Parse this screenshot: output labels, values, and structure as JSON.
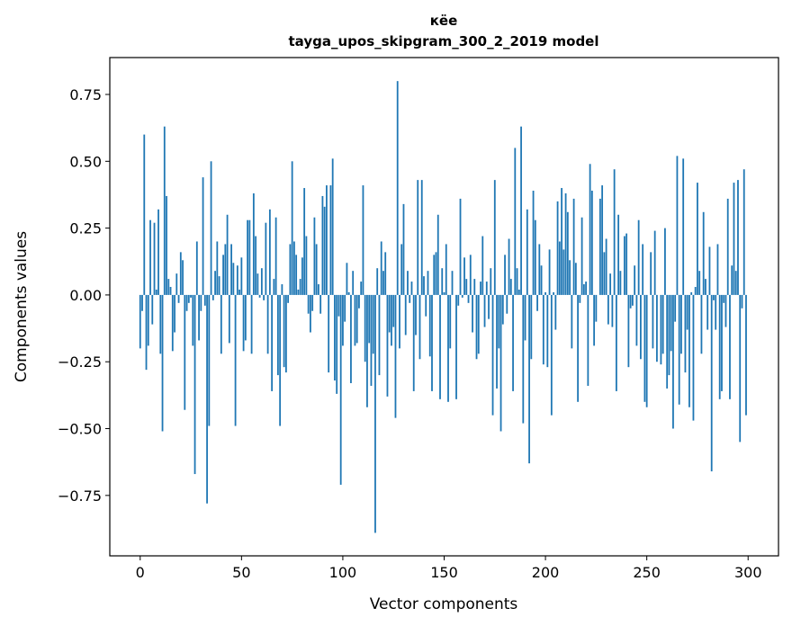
{
  "chart_data": {
    "type": "bar",
    "title_line1": "кёе",
    "title_line2": "tayga_upos_skipgram_300_2_2019 model",
    "xlabel": "Vector components",
    "ylabel": "Components values",
    "xlim": [
      -15,
      315
    ],
    "ylim": [
      -0.976,
      0.888
    ],
    "xticks": [
      "0",
      "50",
      "100",
      "150",
      "200",
      "250",
      "300"
    ],
    "xtick_values": [
      0,
      50,
      100,
      150,
      200,
      250,
      300
    ],
    "yticks": [
      "−0.75",
      "−0.50",
      "−0.25",
      "0.00",
      "0.25",
      "0.50",
      "0.75"
    ],
    "ytick_values": [
      -0.75,
      -0.5,
      -0.25,
      0,
      0.25,
      0.5,
      0.75
    ],
    "grid": false,
    "bar_color": "#1f77b4",
    "values": [
      -0.2,
      -0.06,
      0.6,
      -0.28,
      -0.19,
      0.28,
      -0.11,
      0.27,
      0.02,
      0.32,
      -0.22,
      -0.51,
      0.63,
      0.37,
      0.06,
      0.03,
      -0.21,
      -0.14,
      0.08,
      -0.03,
      0.16,
      0.13,
      -0.43,
      -0.06,
      -0.03,
      -0.01,
      -0.19,
      -0.67,
      0.2,
      -0.17,
      -0.06,
      0.44,
      -0.04,
      -0.78,
      -0.49,
      0.5,
      -0.02,
      0.09,
      0.2,
      0.07,
      -0.22,
      0.15,
      0.19,
      0.3,
      -0.18,
      0.19,
      0.12,
      -0.49,
      0.11,
      0.02,
      0.14,
      -0.21,
      -0.17,
      0.28,
      0.28,
      -0.22,
      0.38,
      0.22,
      0.08,
      -0.01,
      0.1,
      -0.02,
      0.27,
      -0.22,
      0.32,
      -0.36,
      0.06,
      0.29,
      -0.3,
      -0.49,
      0.04,
      -0.27,
      -0.29,
      -0.03,
      0.19,
      0.5,
      0.2,
      0.15,
      0.02,
      0.06,
      0.14,
      0.4,
      0.22,
      -0.07,
      -0.14,
      -0.06,
      0.29,
      0.19,
      0.04,
      -0.07,
      0.37,
      0.33,
      0.41,
      -0.29,
      0.41,
      0.51,
      -0.32,
      -0.37,
      -0.08,
      -0.71,
      -0.19,
      -0.1,
      0.12,
      0.01,
      -0.33,
      0.09,
      -0.19,
      -0.18,
      -0.05,
      0.05,
      0.41,
      -0.25,
      -0.42,
      -0.18,
      -0.34,
      -0.22,
      -0.89,
      0.1,
      -0.3,
      0.2,
      0.09,
      0.16,
      -0.38,
      -0.14,
      -0.19,
      -0.12,
      -0.46,
      0.8,
      -0.2,
      0.19,
      0.34,
      -0.15,
      0.09,
      -0.03,
      0.05,
      -0.36,
      -0.15,
      0.43,
      -0.24,
      0.43,
      0.07,
      -0.08,
      0.09,
      -0.23,
      -0.36,
      0.15,
      0.16,
      0.3,
      -0.39,
      0.1,
      0.01,
      0.19,
      -0.4,
      -0.2,
      0.09,
      0.0,
      -0.39,
      -0.04,
      0.36,
      -0.01,
      0.14,
      0.06,
      -0.03,
      0.15,
      -0.14,
      0.06,
      -0.24,
      -0.22,
      0.05,
      0.22,
      -0.12,
      0.05,
      -0.09,
      0.1,
      -0.45,
      0.43,
      -0.35,
      -0.2,
      -0.51,
      -0.11,
      0.15,
      -0.07,
      0.21,
      0.06,
      -0.36,
      0.55,
      0.1,
      0.02,
      0.63,
      -0.48,
      -0.17,
      0.32,
      -0.63,
      -0.24,
      0.39,
      0.28,
      -0.06,
      0.19,
      0.11,
      -0.26,
      0.01,
      -0.27,
      0.17,
      -0.45,
      0.01,
      -0.13,
      0.35,
      0.2,
      0.4,
      0.17,
      0.38,
      0.31,
      0.13,
      -0.2,
      0.36,
      0.12,
      -0.4,
      -0.03,
      0.29,
      0.04,
      0.05,
      -0.34,
      0.49,
      0.39,
      -0.19,
      -0.1,
      0.0,
      0.36,
      0.41,
      0.16,
      0.21,
      -0.11,
      0.08,
      -0.12,
      0.47,
      -0.36,
      0.3,
      0.09,
      0.0,
      0.22,
      0.23,
      -0.27,
      -0.05,
      -0.04,
      0.11,
      -0.19,
      0.28,
      -0.24,
      0.19,
      -0.4,
      -0.42,
      0.0,
      0.16,
      -0.2,
      0.24,
      -0.25,
      0.0,
      -0.26,
      -0.22,
      0.25,
      -0.35,
      -0.3,
      -0.21,
      -0.5,
      -0.1,
      0.52,
      -0.41,
      -0.22,
      0.51,
      -0.29,
      -0.13,
      -0.42,
      0.01,
      -0.47,
      0.03,
      0.42,
      0.09,
      -0.22,
      0.31,
      0.06,
      -0.13,
      0.18,
      -0.66,
      -0.02,
      -0.13,
      0.19,
      -0.39,
      -0.36,
      -0.03,
      -0.12,
      0.36,
      -0.39,
      0.11,
      0.42,
      0.09,
      0.43,
      -0.55,
      -0.05,
      0.47,
      -0.45
    ]
  }
}
